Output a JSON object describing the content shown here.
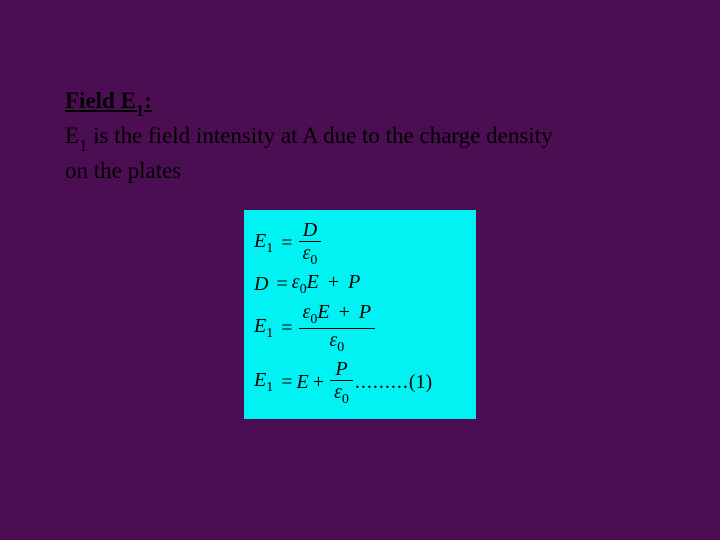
{
  "colors": {
    "background": "#4b0e52",
    "text": "#000000",
    "equation_box": "#00f3f2"
  },
  "typography": {
    "body_font": "Times New Roman",
    "heading_fontsize": 23,
    "equation_fontsize": 20
  },
  "text": {
    "title_label": "Field E",
    "title_sub": "1",
    "title_colon": ":",
    "line2_a": "E",
    "line2_sub": "1",
    "line2_b": "  is the field intensity at A due to the charge density",
    "line3": "on the plates"
  },
  "equations": {
    "eq1": {
      "lhs_E": "E",
      "lhs_sub": "1",
      "eq": "=",
      "num": "D",
      "den_eps": "ε",
      "den_sub": "0"
    },
    "eq2": {
      "lhs": "D",
      "eq": "=",
      "eps": "ε",
      "eps_sub": "0",
      "E": "E",
      "plus": "+",
      "P": "P"
    },
    "eq3": {
      "lhs_E": "E",
      "lhs_sub": "1",
      "eq": "=",
      "num_eps": "ε",
      "num_eps_sub": "0",
      "num_E": "E",
      "num_plus": "+",
      "num_P": "P",
      "den_eps": "ε",
      "den_sub": "0"
    },
    "eq4": {
      "lhs_E": "E",
      "lhs_sub": "1",
      "eq": "=",
      "E": "E",
      "plus": "+",
      "num": "P",
      "den_eps": "ε",
      "den_sub": "0",
      "dots": ".........",
      "ref": "(1)"
    }
  },
  "layout": {
    "slide_width": 720,
    "slide_height": 540,
    "equation_box_width": 232
  }
}
